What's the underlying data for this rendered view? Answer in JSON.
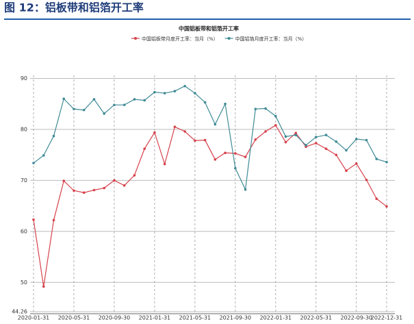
{
  "header": {
    "title": "图 12：铝板带和铝箔开工率"
  },
  "chart_data": {
    "type": "line",
    "title": "中国铝板带和铝箔开工率",
    "categories": [
      "2020-01-31",
      null,
      null,
      null,
      "2020-05-31",
      null,
      null,
      null,
      "2020-09-30",
      null,
      null,
      null,
      "2021-01-31",
      null,
      null,
      null,
      "2021-05-31",
      null,
      null,
      null,
      "2021-09-30",
      null,
      null,
      null,
      "2022-01-31",
      null,
      null,
      null,
      "2022-05-31",
      null,
      null,
      null,
      "2022-09-30",
      null,
      null,
      "2022-12-31"
    ],
    "series": [
      {
        "name": "中国铝板带月度开工率：当月（%）",
        "color": "#d6414b",
        "values": [
          62.3,
          49.2,
          62.2,
          69.9,
          68.0,
          67.6,
          68.1,
          68.5,
          70.0,
          69.0,
          71.0,
          76.2,
          79.4,
          73.2,
          80.5,
          79.6,
          77.8,
          77.9,
          74.1,
          75.4,
          75.3,
          74.6,
          78.0,
          79.6,
          80.8,
          77.5,
          79.3,
          76.6,
          77.3,
          76.2,
          75.0,
          71.9,
          73.3,
          70.1,
          66.4,
          64.9
        ]
      },
      {
        "name": "中国铝箔月度开工率：当月（%）",
        "color": "#3f8a96",
        "values": [
          73.4,
          74.9,
          78.7,
          86.0,
          84.0,
          83.8,
          85.9,
          83.1,
          84.8,
          84.8,
          85.9,
          85.7,
          87.3,
          87.1,
          87.5,
          88.5,
          87.1,
          85.3,
          81.0,
          85.0,
          72.4,
          68.2,
          84.0,
          84.1,
          82.6,
          78.6,
          78.9,
          76.9,
          78.5,
          78.9,
          77.6,
          75.9,
          78.1,
          77.9,
          74.2,
          73.6
        ]
      }
    ],
    "ylim": [
      44.26,
      100
    ],
    "yticks": [
      44.26,
      50,
      60,
      70,
      80,
      90
    ],
    "grid": true
  }
}
